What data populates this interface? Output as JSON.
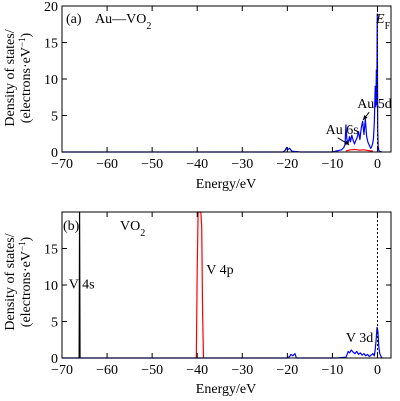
{
  "chart_data": [
    {
      "type": "line",
      "panel_label": "(a)",
      "title": "Au—VO",
      "title_subscript": "2",
      "xlabel": "Energy/eV",
      "ylabel_line1": "Density of states/",
      "ylabel_line2": "(electrons·eV",
      "ylabel_sup": "−1",
      "ylabel_close": ")",
      "xlim": [
        -70,
        3
      ],
      "ylim": [
        0,
        20
      ],
      "xticks": [
        -70,
        -60,
        -50,
        -40,
        -30,
        -20,
        -10,
        0
      ],
      "xtick_labels": [
        "−70",
        "−60",
        "−50",
        "−40",
        "−30",
        "−20",
        "−10",
        "0"
      ],
      "yticks": [
        0,
        5,
        10,
        15,
        20
      ],
      "ytick_labels": [
        "0",
        "5",
        "10",
        "15",
        "20"
      ],
      "fermi_level": 0,
      "fermi_label_main": "E",
      "fermi_label_sub": "F",
      "annotations": [
        {
          "text": "Au 5d",
          "x": -4.5,
          "y": 6.0,
          "arrow_to": [
            -3.2,
            4.4
          ]
        },
        {
          "text": "Au 6s",
          "x": -11.5,
          "y": 2.5,
          "arrow_to": [
            -6.3,
            1.0
          ]
        }
      ],
      "series": [
        {
          "color": "#0000ff",
          "x": [
            -70,
            -21,
            -20.5,
            -20.2,
            -20.0,
            -19.5,
            -19,
            -17,
            -10,
            -8,
            -7.5,
            -7.2,
            -7.0,
            -6.8,
            -6.5,
            -6.2,
            -6.0,
            -5.7,
            -5.4,
            -5.1,
            -4.8,
            -4.5,
            -4.2,
            -3.9,
            -3.6,
            -3.3,
            -3.0,
            -2.7,
            -2.4,
            -2.1,
            -1.8,
            -1.5,
            -1.3,
            -1.1,
            -0.9,
            -0.7,
            -0.5,
            -0.35,
            -0.25,
            -0.15,
            -0.05,
            0.05,
            0.15,
            0.3,
            0.6,
            1.0
          ],
          "y": [
            0,
            0,
            0.2,
            0.6,
            0.3,
            0.5,
            0.1,
            0,
            0,
            0.3,
            0.6,
            1.0,
            3.7,
            1.8,
            1.2,
            2.1,
            1.4,
            2.3,
            1.6,
            1.1,
            1.6,
            2.0,
            2.8,
            1.7,
            3.3,
            4.2,
            2.4,
            4.5,
            2.1,
            1.3,
            0.9,
            0.5,
            0.7,
            1.1,
            1.8,
            4.0,
            9.0,
            6.2,
            11.2,
            6.5,
            18.9,
            3.2,
            0.8,
            0.2,
            0.05,
            0
          ]
        },
        {
          "color": "#ff0000",
          "x": [
            -7.0,
            -6.0,
            -5.0,
            -4.0,
            -3.0,
            -2.0,
            -1.0
          ],
          "y": [
            0.15,
            0.3,
            0.35,
            0.25,
            0.3,
            0.2,
            0.1
          ]
        }
      ]
    },
    {
      "type": "line",
      "panel_label": "(b)",
      "title": "VO",
      "title_subscript": "2",
      "xlabel": "Energy/eV",
      "ylabel_line1": "Density of states/",
      "ylabel_line2": "(electrons·eV",
      "ylabel_sup": "−1",
      "ylabel_close": ")",
      "xlim": [
        -70,
        3
      ],
      "ylim": [
        0,
        20
      ],
      "xticks": [
        -70,
        -60,
        -50,
        -40,
        -30,
        -20,
        -10,
        0
      ],
      "xtick_labels": [
        "−70",
        "−60",
        "−50",
        "−40",
        "−30",
        "−20",
        "−10",
        "0"
      ],
      "yticks": [
        0,
        5,
        10,
        15
      ],
      "ytick_labels": [
        "0",
        "5",
        "10",
        "15"
      ],
      "fermi_level": 0,
      "annotations": [
        {
          "text": "V 4s",
          "x": -68.5,
          "y": 9.5
        },
        {
          "text": "V 4p",
          "x": -38,
          "y": 11.5
        },
        {
          "text": "V 3d",
          "x": -7,
          "y": 2.2
        }
      ],
      "series": [
        {
          "color": "#000000",
          "x": [
            -66.2,
            -66.1,
            -66.0
          ],
          "y": [
            0,
            20,
            0
          ]
        },
        {
          "color": "#ff0000",
          "x": [
            -40.2,
            -40.0,
            -39.8,
            -39.6,
            -39.4,
            -39.2,
            -39.0,
            -38.8,
            -38.6
          ],
          "y": [
            0,
            12,
            20,
            20,
            20,
            20,
            18,
            6,
            0
          ]
        },
        {
          "color": "#0000ff",
          "x": [
            -70,
            -20,
            -19.5,
            -19.2,
            -18.8,
            -18.3,
            -18,
            -9,
            -7,
            -6.8,
            -6.5,
            -6.2,
            -5.8,
            -5.4,
            -5.0,
            -4.6,
            -4.2,
            -3.8,
            -3.4,
            -3.0,
            -2.6,
            -2.2,
            -1.8,
            -1.4,
            -1.0,
            -0.7,
            -0.5,
            -0.3,
            -0.1,
            0.1,
            0.3,
            0.5,
            0.8,
            1.0
          ],
          "y": [
            0,
            0,
            0.2,
            0.5,
            0.3,
            0.6,
            0,
            0,
            0.1,
            0.4,
            0.9,
            0.7,
            1.1,
            0.8,
            0.6,
            0.9,
            0.5,
            0.7,
            0.4,
            0.6,
            0.3,
            0.5,
            0.2,
            0.4,
            0.6,
            0.3,
            1.2,
            2.5,
            4.2,
            3.6,
            1.5,
            0.6,
            0.2,
            0
          ]
        }
      ]
    }
  ]
}
